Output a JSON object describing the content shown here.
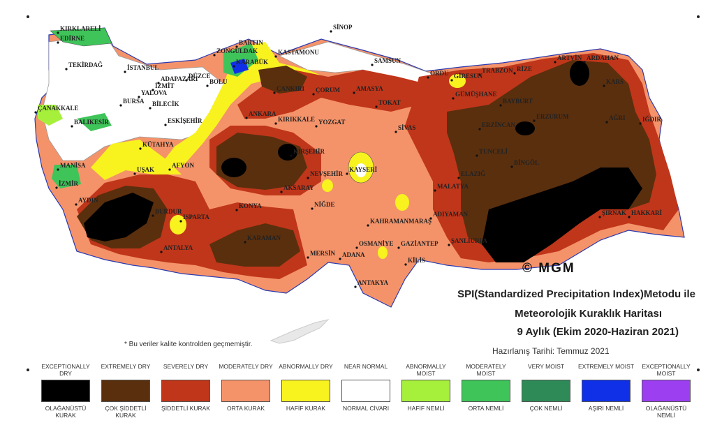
{
  "map": {
    "copyright": "© MGM",
    "title_line1": "SPI(Standardized Precipitation Index)Metodu ile",
    "title_line2": "Meteorolojik Kuraklık Haritası",
    "title_line3": "9 Aylık (Ekim 2020-Haziran 2021)",
    "prepared": "Hazırlanış Tarihi: Temmuz 2021",
    "note": "* Bu veriler kalite kontrolden geçmemiştir.",
    "cities": [
      "SİNOP",
      "KIRKLARELİ",
      "EDİRNE",
      "BARTIN",
      "ZONGULDAK",
      "KARABÜK",
      "KASTAMONU",
      "SAMSUN",
      "ARTVİN",
      "ARDAHAN",
      "TEKİRDAĞ",
      "İSTANBUL",
      "DÜZCE",
      "BOLU",
      "ORDU",
      "GİRESUN",
      "TRABZON",
      "RİZE",
      "KARS",
      "ADAPAZARI",
      "İZMİT",
      "YALOVA",
      "ÇANKIRI",
      "ÇORUM",
      "AMASYA",
      "GÜMÜŞHANE",
      "BURSA",
      "BİLECİK",
      "TOKAT",
      "BAYBURT",
      "ÇANAKKALE",
      "ANKARA",
      "KIRIKKALE",
      "YOZGAT",
      "SİVAS",
      "ERZURUM",
      "AĞRI",
      "IĞDIR",
      "BALIKESİR",
      "ESKİŞEHİR",
      "ERZİNCAN",
      "KÜTAHYA",
      "KIRŞEHİR",
      "TUNCELİ",
      "BİNGÖL",
      "MANİSA",
      "UŞAK",
      "AFYON",
      "NEVŞEHİR",
      "KAYSERİ",
      "ELAZIĞ",
      "İZMİR",
      "AKSARAY",
      "MALATYA",
      "AYDIN",
      "BURDUR",
      "ISPARTA",
      "KONYA",
      "NİĞDE",
      "ADIYAMAN",
      "ŞIRNAK",
      "HAKKARİ",
      "KARAMAN",
      "KAHRAMANMARAŞ",
      "ANTALYA",
      "OSMANİYE",
      "GAZİANTEP",
      "ŞANLIURFA",
      "MERSİN",
      "ADANA",
      "KİLİS",
      "ANTAKYA"
    ]
  },
  "legend": [
    {
      "en": "EXCEPTIONALLY DRY",
      "tr": "OLAĞANÜSTÜ KURAK",
      "color": "#000000"
    },
    {
      "en": "EXTREMELY DRY",
      "tr": "ÇOK ŞİDDETLİ KURAK",
      "color": "#5a2f0e"
    },
    {
      "en": "SEVERELY DRY",
      "tr": "ŞİDDETLİ KURAK",
      "color": "#c0361a"
    },
    {
      "en": "MODERATELY DRY",
      "tr": "ORTA KURAK",
      "color": "#f4936a"
    },
    {
      "en": "ABNORMALLY DRY",
      "tr": "HAFİF KURAK",
      "color": "#f8f21f"
    },
    {
      "en": "NEAR NORMAL",
      "tr": "NORMAL CİVARI",
      "color": "#ffffff"
    },
    {
      "en": "ABNORMALLY MOIST",
      "tr": "HAFİF NEMLİ",
      "color": "#a6f03c"
    },
    {
      "en": "MODERATELY MOIST",
      "tr": "ORTA NEMLİ",
      "color": "#3fc45a"
    },
    {
      "en": "VERY MOIST",
      "tr": "ÇOK NEMLİ",
      "color": "#2e8b57"
    },
    {
      "en": "EXTREMELY MOIST",
      "tr": "AŞIRI NEMLİ",
      "color": "#1030e8"
    },
    {
      "en": "EXCEPTIONALLY MOIST",
      "tr": "OLAĞANÜSTÜ NEMLİ",
      "color": "#9b3ff0"
    }
  ]
}
